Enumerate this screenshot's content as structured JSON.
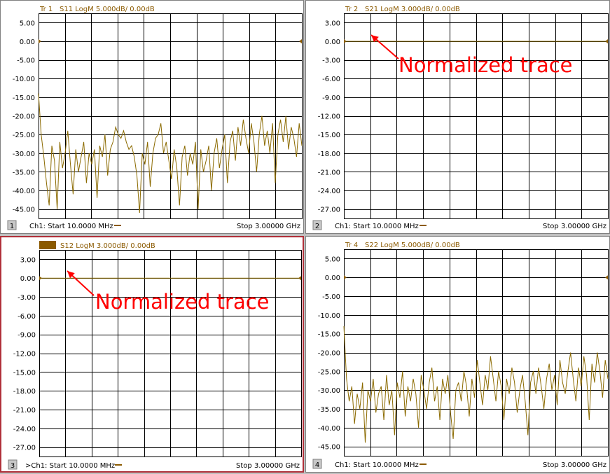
{
  "colors": {
    "trace": "#8b6a00",
    "grid": "#000000",
    "annotation": "#ff0000",
    "active_border": "#b0303a"
  },
  "panels": [
    {
      "index_label": "1",
      "header": {
        "trace_label": "Tr 1",
        "text": "S11 LogM 5.000dB/  0.00dB"
      },
      "footer": {
        "left": "Ch1: Start  10.0000 MHz",
        "right": "Stop  3.00000 GHz"
      },
      "y_ticks": [
        "5.00",
        "0.00",
        "-5.00",
        "-10.00",
        "-15.00",
        "-20.00",
        "-25.00",
        "-30.00",
        "-35.00",
        "-40.00",
        "-45.00"
      ],
      "annotation": ""
    },
    {
      "index_label": "2",
      "header": {
        "trace_label": "Tr 2",
        "text": "S21 LogM 3.000dB/  0.00dB"
      },
      "footer": {
        "left": "Ch1: Start  10.0000 MHz",
        "right": "Stop  3.00000 GHz"
      },
      "y_ticks": [
        "3.00",
        "0.00",
        "-3.00",
        "-6.00",
        "-9.00",
        "-12.00",
        "-15.00",
        "-18.00",
        "-21.00",
        "-24.00",
        "-27.00"
      ],
      "annotation": "Normalized trace"
    },
    {
      "index_label": "3",
      "header": {
        "trace_label": "Tr 3",
        "text": "S12 LogM 3.000dB/  0.00dB"
      },
      "footer": {
        "left": ">Ch1: Start  10.0000 MHz",
        "right": "Stop  3.00000 GHz"
      },
      "y_ticks": [
        "3.00",
        "0.00",
        "-3.00",
        "-6.00",
        "-9.00",
        "-12.00",
        "-15.00",
        "-18.00",
        "-21.00",
        "-24.00",
        "-27.00"
      ],
      "annotation": "Normalized trace"
    },
    {
      "index_label": "4",
      "header": {
        "trace_label": "Tr 4",
        "text": "S22 LogM 5.000dB/  0.00dB"
      },
      "footer": {
        "left": "Ch1: Start  10.0000 MHz",
        "right": "Stop  3.00000 GHz"
      },
      "y_ticks": [
        "5.00",
        "0.00",
        "-5.00",
        "-10.00",
        "-15.00",
        "-20.00",
        "-25.00",
        "-30.00",
        "-35.00",
        "-40.00",
        "-45.00"
      ],
      "annotation": ""
    }
  ],
  "chart_data": [
    {
      "type": "line",
      "title": "S11 LogM 5.000dB/  0.00dB",
      "xlim": [
        0.01,
        3.0
      ],
      "ylim": [
        -47.5,
        7.5
      ],
      "y_ticks": [
        5,
        0,
        -5,
        -10,
        -15,
        -20,
        -25,
        -30,
        -35,
        -40,
        -45
      ],
      "x_start": "10.0000 MHz",
      "x_stop": "3.00000 GHz",
      "grid": true,
      "series": [
        {
          "values": [
            -14,
            -25,
            -31,
            -38,
            -44,
            -28,
            -32,
            -45,
            -27,
            -34,
            -30,
            -24,
            -33,
            -41,
            -29,
            -35,
            -31,
            -27,
            -38,
            -30,
            -33,
            -29,
            -42,
            -28,
            -31,
            -25,
            -36,
            -29,
            -27,
            -23,
            -25,
            -26,
            -24,
            -27,
            -29,
            -28,
            -31,
            -36,
            -46,
            -30,
            -33,
            -27,
            -39,
            -30,
            -26,
            -25,
            -22,
            -30,
            -27,
            -32,
            -37,
            -29,
            -34,
            -44,
            -31,
            -28,
            -36,
            -30,
            -33,
            -27,
            -45,
            -29,
            -35,
            -32,
            -28,
            -40,
            -30,
            -26,
            -34,
            -29,
            -25,
            -38,
            -27,
            -24,
            -32,
            -23,
            -28,
            -21,
            -26,
            -30,
            -22,
            -27,
            -35,
            -25,
            -20,
            -28,
            -24,
            -30,
            -22,
            -38,
            -25,
            -21,
            -27,
            -20,
            -29,
            -23,
            -26,
            -31,
            -22,
            -28
          ]
        }
      ]
    },
    {
      "type": "line",
      "title": "S21 LogM 3.000dB/  0.00dB",
      "xlim": [
        0.01,
        3.0
      ],
      "ylim": [
        -28.5,
        4.5
      ],
      "y_ticks": [
        3,
        0,
        -3,
        -6,
        -9,
        -12,
        -15,
        -18,
        -21,
        -24,
        -27
      ],
      "x_start": "10.0000 MHz",
      "x_stop": "3.00000 GHz",
      "grid": true,
      "series": [
        {
          "values": [
            0,
            0,
            0,
            0,
            0,
            0,
            0,
            0,
            0,
            0,
            0
          ]
        }
      ]
    },
    {
      "type": "line",
      "title": "S12 LogM 3.000dB/  0.00dB",
      "xlim": [
        0.01,
        3.0
      ],
      "ylim": [
        -28.5,
        4.5
      ],
      "y_ticks": [
        3,
        0,
        -3,
        -6,
        -9,
        -12,
        -15,
        -18,
        -21,
        -24,
        -27
      ],
      "x_start": "10.0000 MHz",
      "x_stop": "3.00000 GHz",
      "grid": true,
      "series": [
        {
          "values": [
            0,
            0,
            0,
            0,
            0,
            0,
            0,
            0,
            0,
            0,
            0
          ]
        }
      ]
    },
    {
      "type": "line",
      "title": "S22 LogM 5.000dB/  0.00dB",
      "xlim": [
        0.01,
        3.0
      ],
      "ylim": [
        -47.5,
        7.5
      ],
      "y_ticks": [
        5,
        0,
        -5,
        -10,
        -15,
        -20,
        -25,
        -30,
        -35,
        -40,
        -45
      ],
      "x_start": "10.0000 MHz",
      "x_stop": "3.00000 GHz",
      "grid": true,
      "series": [
        {
          "values": [
            -13,
            -27,
            -33,
            -29,
            -39,
            -31,
            -35,
            -28,
            -44,
            -30,
            -33,
            -27,
            -36,
            -31,
            -29,
            -38,
            -26,
            -34,
            -30,
            -42,
            -28,
            -32,
            -25,
            -37,
            -29,
            -33,
            -27,
            -31,
            -40,
            -26,
            -30,
            -35,
            -28,
            -24,
            -33,
            -29,
            -38,
            -27,
            -31,
            -26,
            -36,
            -43,
            -30,
            -28,
            -33,
            -25,
            -29,
            -37,
            -27,
            -32,
            -22,
            -28,
            -34,
            -26,
            -30,
            -21,
            -27,
            -33,
            -25,
            -29,
            -38,
            -27,
            -31,
            -24,
            -28,
            -36,
            -30,
            -26,
            -33,
            -42,
            -28,
            -25,
            -31,
            -24,
            -29,
            -35,
            -27,
            -23,
            -30,
            -26,
            -34,
            -22,
            -28,
            -31,
            -25,
            -20,
            -27,
            -33,
            -24,
            -29,
            -21,
            -26,
            -38,
            -23,
            -28,
            -20,
            -25,
            -32,
            -22,
            -27
          ]
        }
      ]
    }
  ]
}
